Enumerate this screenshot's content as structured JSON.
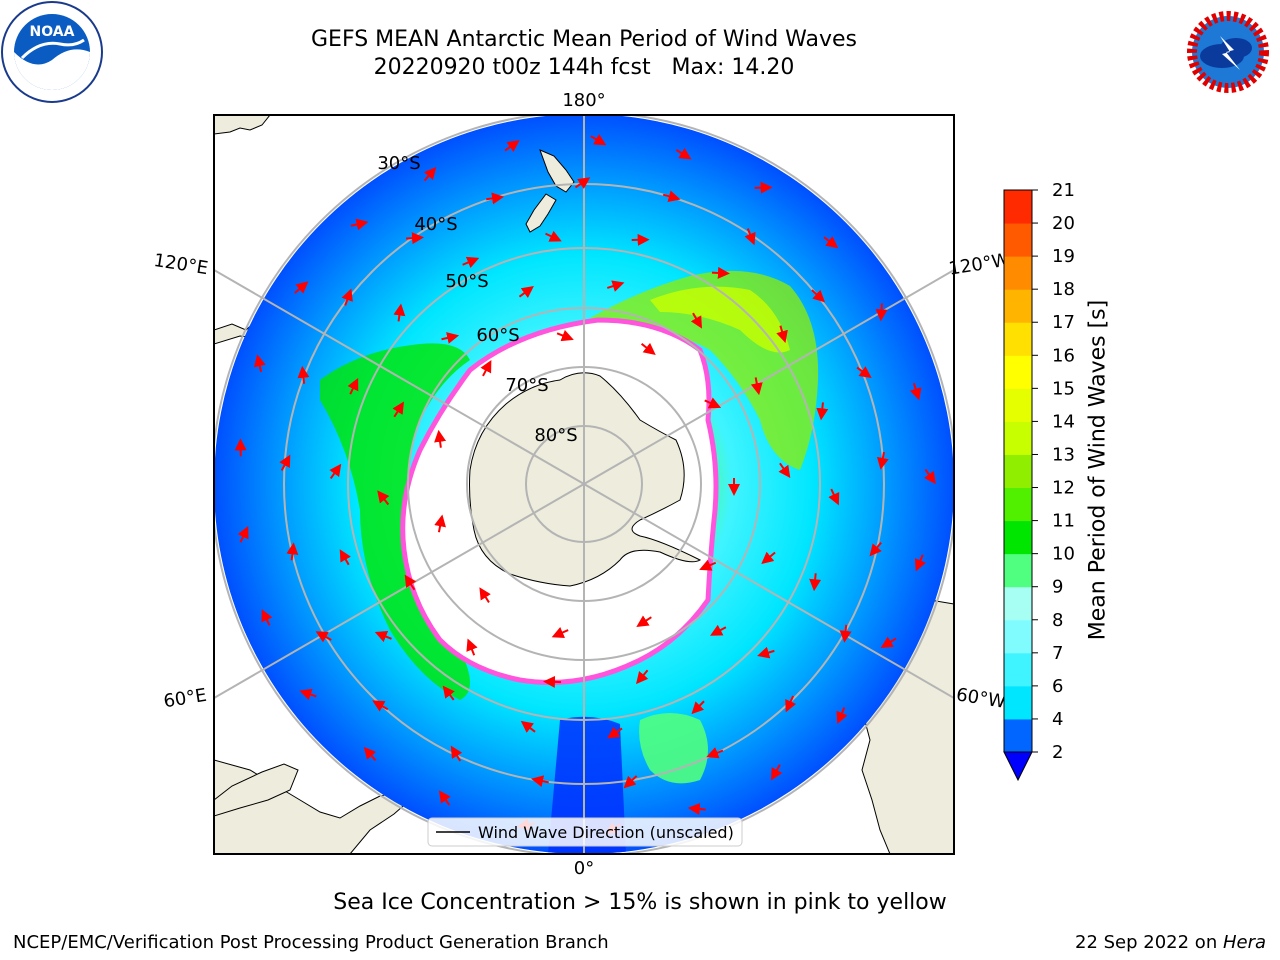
{
  "header": {
    "title_line1": "GEFS MEAN Antarctic Mean Period of Wind Waves",
    "title_line2": "20220920 t00z 144h fcst   Max: 14.20"
  },
  "logos": {
    "left": {
      "icon": "noaa-logo-icon",
      "text": "NOAA"
    },
    "right": {
      "icon": "national-weather-service-logo-icon"
    }
  },
  "map": {
    "projection": "south-polar-stereographic",
    "lon_labels": {
      "top": "180°",
      "bottom": "0°",
      "upper_left": "120°E",
      "upper_right": "120°W",
      "lower_left": "60°E",
      "lower_right": "60°W"
    },
    "lat_labels": [
      "30°S",
      "40°S",
      "50°S",
      "60°S",
      "70°S",
      "80°S"
    ],
    "legend_label": "Wind Wave Direction (unscaled)",
    "colors": {
      "land": "#eeecdc",
      "ice": "#ffffff",
      "arrow": "#ff0000",
      "grid": "#b4b4b4",
      "sea_ice_edge": "#ff55dd"
    }
  },
  "colorbar": {
    "label": "Mean Period of Wind Waves [s]",
    "ticks": [
      "2",
      "4",
      "6",
      "7",
      "8",
      "9",
      "10",
      "11",
      "12",
      "13",
      "14",
      "15",
      "16",
      "17",
      "18",
      "19",
      "20",
      "21"
    ],
    "colors": [
      "#0066ff",
      "#00e6ff",
      "#40f4ff",
      "#80fcff",
      "#a6fff2",
      "#50ff80",
      "#00e600",
      "#50f000",
      "#90ee00",
      "#c8ff00",
      "#e6ff00",
      "#ffff00",
      "#ffe000",
      "#ffb400",
      "#ff8c00",
      "#ff5a00",
      "#ff2a00",
      "#ff0000"
    ],
    "under_color": "#0000ff"
  },
  "caption": "Sea Ice Concentration > 15% is shown in pink to yellow",
  "footer": {
    "left": "NCEP/EMC/Verification Post Processing Product Generation Branch",
    "right_date": "22 Sep 2022 on ",
    "right_host": "Hera"
  }
}
